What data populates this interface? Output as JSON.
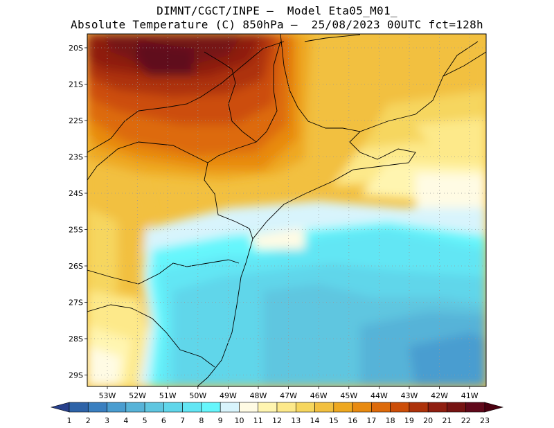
{
  "header": {
    "line1": "DIMNT/CGCT/INPE –  Model Eta05_M01_",
    "line2": "Absolute Temperature (C) 850hPa –  25/08/2023 00UTC fct=128h"
  },
  "map": {
    "lat_labels": [
      "20S",
      "21S",
      "22S",
      "23S",
      "24S",
      "25S",
      "26S",
      "27S",
      "28S",
      "29S"
    ],
    "lon_labels": [
      "53W",
      "52W",
      "51W",
      "50W",
      "49W",
      "48W",
      "47W",
      "46W",
      "45W",
      "44W",
      "43W",
      "42W",
      "41W"
    ],
    "grid": true
  },
  "colorbar": {
    "labels": [
      "1",
      "2",
      "3",
      "4",
      "5",
      "6",
      "7",
      "8",
      "9",
      "10",
      "11",
      "12",
      "13",
      "14",
      "15",
      "16",
      "17",
      "18",
      "19",
      "20",
      "21",
      "22",
      "23"
    ],
    "colors": [
      "#27408b",
      "#2e63a8",
      "#3a7fc0",
      "#4a9dd0",
      "#57b3d8",
      "#5fc6e0",
      "#60d6ea",
      "#62e6f4",
      "#66f6fc",
      "#d8f4fc",
      "#fffbe4",
      "#fff5b0",
      "#fde98a",
      "#f6d65e",
      "#f2c040",
      "#eea820",
      "#e88a10",
      "#dd6a0a",
      "#cc4e08",
      "#ad320a",
      "#8f1e10",
      "#761312",
      "#60081a",
      "#4a0010"
    ]
  }
}
